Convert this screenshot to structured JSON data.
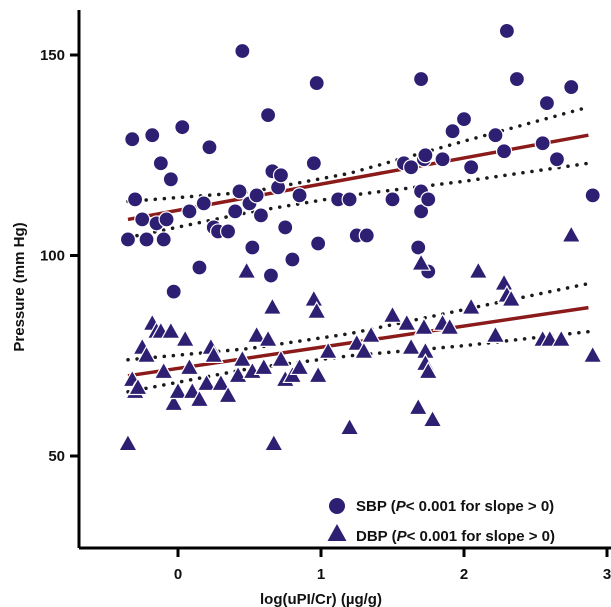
{
  "chart_data": {
    "type": "scatter",
    "xlabel": "log(uPI/Cr)  (µg/g)",
    "ylabel": "Pressure (mm Hg)",
    "xlim": [
      -0.6,
      3.0
    ],
    "ylim": [
      28,
      160
    ],
    "x_ticks": [
      0,
      1,
      2,
      3
    ],
    "y_ticks": [
      50,
      100,
      150
    ],
    "grid": false,
    "legend_position": "bottom-right",
    "colors": {
      "marker": "#2e1f73",
      "fit_line": "#8b1a1a",
      "ci_line": "#1a1a1a"
    },
    "series": [
      {
        "name": "SBP",
        "legend_parts": [
          "SBP (",
          "P",
          "< 0.001 for slope > 0)"
        ],
        "marker": "circle",
        "points": [
          [
            -0.32,
            129
          ],
          [
            -0.35,
            104
          ],
          [
            -0.3,
            114
          ],
          [
            -0.25,
            109
          ],
          [
            -0.22,
            104
          ],
          [
            -0.18,
            130
          ],
          [
            -0.15,
            108
          ],
          [
            -0.12,
            123
          ],
          [
            -0.1,
            104
          ],
          [
            -0.08,
            109
          ],
          [
            -0.05,
            119
          ],
          [
            -0.03,
            91
          ],
          [
            0.03,
            132
          ],
          [
            0.08,
            111
          ],
          [
            0.15,
            97
          ],
          [
            0.18,
            113
          ],
          [
            0.22,
            127
          ],
          [
            0.25,
            107
          ],
          [
            0.28,
            106
          ],
          [
            0.35,
            106
          ],
          [
            0.4,
            111
          ],
          [
            0.43,
            116
          ],
          [
            0.45,
            151
          ],
          [
            0.5,
            113
          ],
          [
            0.52,
            102
          ],
          [
            0.55,
            115
          ],
          [
            0.58,
            110
          ],
          [
            0.63,
            135
          ],
          [
            0.65,
            95
          ],
          [
            0.66,
            121
          ],
          [
            0.7,
            117
          ],
          [
            0.72,
            120
          ],
          [
            0.75,
            107
          ],
          [
            0.8,
            99
          ],
          [
            0.85,
            115
          ],
          [
            0.95,
            123
          ],
          [
            0.97,
            143
          ],
          [
            0.98,
            103
          ],
          [
            1.12,
            114
          ],
          [
            1.2,
            114
          ],
          [
            1.25,
            105
          ],
          [
            1.32,
            105
          ],
          [
            1.5,
            114
          ],
          [
            1.58,
            123
          ],
          [
            1.63,
            122
          ],
          [
            1.68,
            102
          ],
          [
            1.7,
            144
          ],
          [
            1.72,
            124
          ],
          [
            1.7,
            116
          ],
          [
            1.7,
            111
          ],
          [
            1.75,
            114
          ],
          [
            1.75,
            96
          ],
          [
            1.73,
            125
          ],
          [
            1.85,
            124
          ],
          [
            1.92,
            131
          ],
          [
            2.0,
            134
          ],
          [
            2.05,
            122
          ],
          [
            2.22,
            130
          ],
          [
            2.3,
            156
          ],
          [
            2.28,
            126
          ],
          [
            2.37,
            144
          ],
          [
            2.55,
            128
          ],
          [
            2.58,
            138
          ],
          [
            2.65,
            124
          ],
          [
            2.75,
            142
          ],
          [
            2.9,
            115
          ]
        ],
        "fit": {
          "x": [
            -0.35,
            2.87
          ],
          "y": [
            109.0,
            130.0
          ]
        },
        "ci_upper": [
          [
            -0.35,
            113.5
          ],
          [
            0.5,
            115.8
          ],
          [
            1.2,
            120.5
          ],
          [
            2.0,
            128.5
          ],
          [
            2.87,
            137.0
          ]
        ],
        "ci_lower": [
          [
            -0.35,
            104.5
          ],
          [
            0.5,
            110.8
          ],
          [
            1.2,
            115.0
          ],
          [
            2.0,
            118.5
          ],
          [
            2.87,
            123.0
          ]
        ]
      },
      {
        "name": "DBP",
        "legend_parts": [
          "DBP (",
          "P",
          "< 0.001 for slope > 0)"
        ],
        "marker": "triangle",
        "points": [
          [
            -0.35,
            53
          ],
          [
            -0.32,
            69
          ],
          [
            -0.3,
            66
          ],
          [
            -0.28,
            67
          ],
          [
            -0.25,
            77
          ],
          [
            -0.22,
            75
          ],
          [
            -0.18,
            83
          ],
          [
            -0.15,
            81
          ],
          [
            -0.12,
            81
          ],
          [
            -0.1,
            71
          ],
          [
            -0.05,
            81
          ],
          [
            -0.03,
            63
          ],
          [
            0.0,
            66
          ],
          [
            0.05,
            79
          ],
          [
            0.08,
            72
          ],
          [
            0.1,
            66
          ],
          [
            0.15,
            64
          ],
          [
            0.2,
            68
          ],
          [
            0.23,
            77
          ],
          [
            0.25,
            75
          ],
          [
            0.3,
            68
          ],
          [
            0.35,
            65
          ],
          [
            0.42,
            70
          ],
          [
            0.45,
            74
          ],
          [
            0.48,
            96
          ],
          [
            0.52,
            71
          ],
          [
            0.55,
            80
          ],
          [
            0.6,
            72
          ],
          [
            0.63,
            79
          ],
          [
            0.66,
            87
          ],
          [
            0.67,
            53
          ],
          [
            0.72,
            74
          ],
          [
            0.75,
            69
          ],
          [
            0.8,
            70
          ],
          [
            0.85,
            72
          ],
          [
            0.95,
            89
          ],
          [
            0.97,
            86
          ],
          [
            0.98,
            70
          ],
          [
            1.05,
            76
          ],
          [
            1.2,
            57
          ],
          [
            1.25,
            78
          ],
          [
            1.3,
            76
          ],
          [
            1.35,
            80
          ],
          [
            1.5,
            85
          ],
          [
            1.6,
            83
          ],
          [
            1.63,
            77
          ],
          [
            1.68,
            62
          ],
          [
            1.7,
            98
          ],
          [
            1.72,
            82
          ],
          [
            1.73,
            76
          ],
          [
            1.73,
            73
          ],
          [
            1.75,
            71
          ],
          [
            1.78,
            59
          ],
          [
            1.85,
            83
          ],
          [
            1.9,
            82
          ],
          [
            2.05,
            87
          ],
          [
            2.1,
            96
          ],
          [
            2.22,
            80
          ],
          [
            2.28,
            93
          ],
          [
            2.3,
            90
          ],
          [
            2.33,
            89
          ],
          [
            2.55,
            79
          ],
          [
            2.6,
            79
          ],
          [
            2.68,
            79
          ],
          [
            2.75,
            105
          ],
          [
            2.9,
            75
          ]
        ],
        "fit": {
          "x": [
            -0.35,
            2.87
          ],
          "y": [
            70.0,
            87.0
          ]
        },
        "ci_upper": [
          [
            -0.35,
            74.0
          ],
          [
            0.5,
            76.8
          ],
          [
            1.2,
            80.5
          ],
          [
            2.0,
            86.5
          ],
          [
            2.87,
            93.0
          ]
        ],
        "ci_lower": [
          [
            -0.35,
            66.0
          ],
          [
            0.5,
            71.8
          ],
          [
            1.2,
            75.0
          ],
          [
            2.0,
            77.5
          ],
          [
            2.87,
            81.0
          ]
        ]
      }
    ]
  }
}
